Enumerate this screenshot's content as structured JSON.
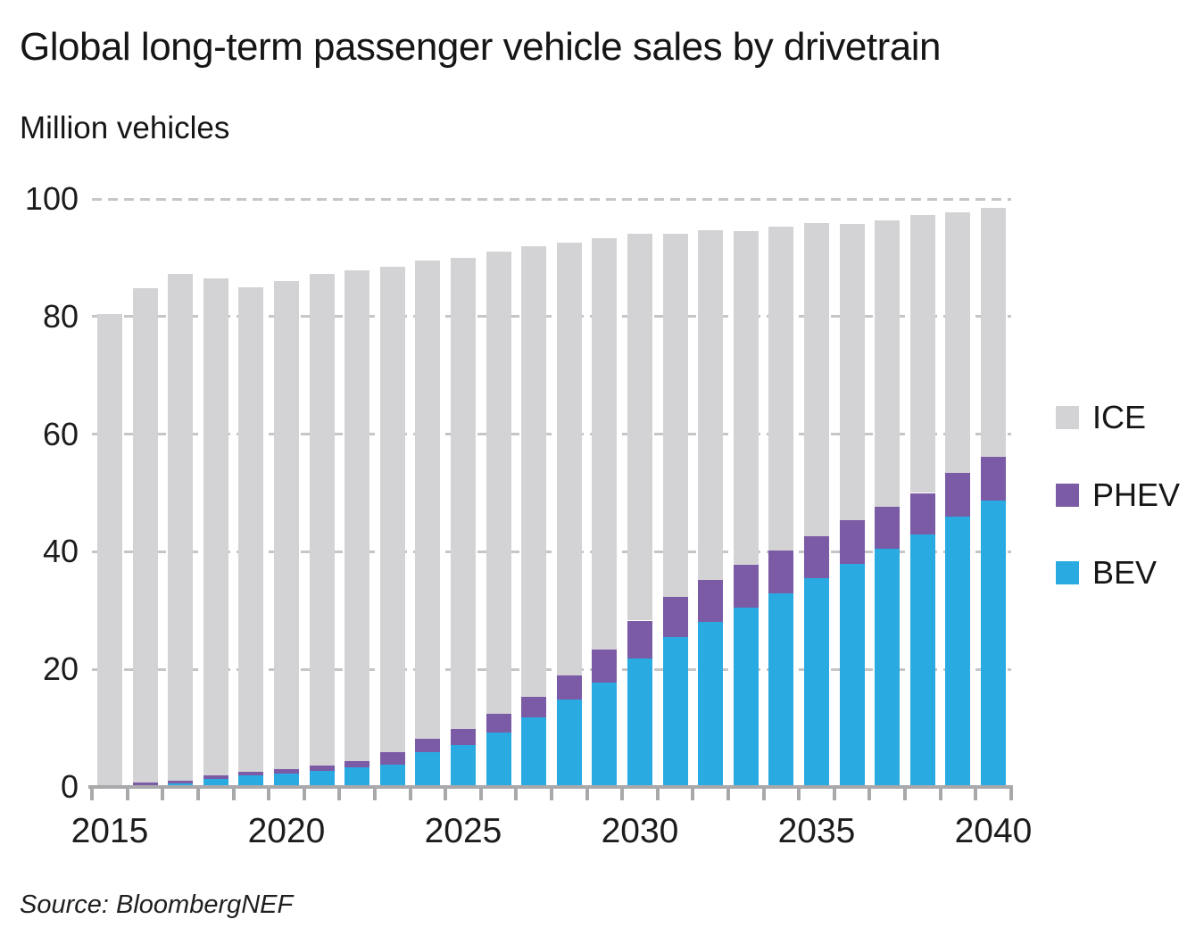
{
  "chart_data": {
    "type": "bar",
    "stacked": true,
    "title": "Global long-term passenger vehicle sales by drivetrain",
    "ylabel": "Million vehicles",
    "source": "Source: BloombergNEF",
    "ylim": [
      0,
      100
    ],
    "ytick_values": [
      0,
      20,
      40,
      60,
      80,
      100
    ],
    "ytick_labels": [
      "0",
      "20",
      "40",
      "60",
      "80",
      "100"
    ],
    "xtick_labeled_years": [
      2015,
      2020,
      2025,
      2030,
      2035,
      2040
    ],
    "grid": "horizontal dashed lines every 20 units; fully visible dashed line at 100",
    "legend_position": "right",
    "years": [
      2015,
      2016,
      2017,
      2018,
      2019,
      2020,
      2021,
      2022,
      2023,
      2024,
      2025,
      2026,
      2027,
      2028,
      2029,
      2030,
      2031,
      2032,
      2033,
      2034,
      2035,
      2036,
      2037,
      2038,
      2039,
      2040
    ],
    "series": [
      {
        "name": "BEV",
        "color": "#29abe2",
        "values": [
          0.2,
          0.3,
          0.6,
          1.4,
          1.9,
          2.3,
          2.8,
          3.3,
          3.8,
          5.9,
          7.2,
          9.3,
          11.8,
          14.8,
          17.8,
          21.8,
          25.5,
          28.0,
          30.5,
          33.0,
          35.5,
          38.0,
          40.5,
          43.0,
          46.0,
          48.7
        ]
      },
      {
        "name": "PHEV",
        "color": "#7b5aa6",
        "values": [
          0.1,
          0.5,
          0.4,
          0.6,
          0.7,
          0.8,
          0.9,
          1.1,
          2.1,
          2.3,
          2.7,
          3.1,
          3.6,
          4.2,
          5.5,
          6.5,
          6.8,
          7.2,
          7.3,
          7.2,
          7.2,
          7.3,
          7.2,
          7.0,
          7.4,
          7.5
        ]
      },
      {
        "name": "ICE",
        "color": "#d3d3d5",
        "values": [
          80.1,
          84.0,
          86.2,
          84.5,
          82.4,
          82.9,
          83.5,
          83.4,
          82.5,
          81.3,
          80.1,
          78.6,
          76.6,
          73.6,
          70.0,
          65.8,
          61.8,
          59.5,
          56.7,
          55.1,
          53.2,
          50.5,
          48.7,
          47.2,
          44.3,
          42.3
        ]
      }
    ],
    "totals": [
      80.4,
      84.8,
      87.2,
      86.5,
      85.0,
      86.0,
      87.2,
      87.8,
      88.4,
      89.5,
      90.0,
      91.0,
      92.0,
      92.6,
      93.3,
      94.1,
      94.1,
      94.7,
      94.5,
      95.3,
      95.9,
      95.8,
      96.4,
      97.2,
      97.7,
      98.5
    ],
    "legend": [
      {
        "label": "ICE",
        "color": "#d3d3d5"
      },
      {
        "label": "PHEV",
        "color": "#7b5aa6"
      },
      {
        "label": "BEV",
        "color": "#29abe2"
      }
    ]
  }
}
